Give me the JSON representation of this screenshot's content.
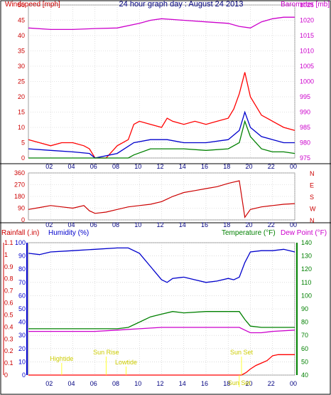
{
  "chart_data": [
    {
      "type": "line",
      "title": "24 hour graph day : August 24 2013",
      "left_label": "Windspeed [mph]",
      "right_label": "Barometer [mb]",
      "x_ticks": [
        "02",
        "04",
        "06",
        "08",
        "10",
        "12",
        "14",
        "16",
        "18",
        "20",
        "22",
        "00"
      ],
      "left_ticks": [
        "0",
        "5",
        "10",
        "15",
        "20",
        "25",
        "30",
        "35",
        "40",
        "45",
        "50"
      ],
      "right_ticks": [
        "975",
        "980",
        "985",
        "990",
        "995",
        "1000",
        "1005",
        "1010",
        "1015",
        "1020",
        "1025"
      ],
      "ylim_left": [
        0,
        50
      ],
      "ylim_right": [
        975,
        1025
      ],
      "series": [
        {
          "color": "#ff0000",
          "axis": "left",
          "x": [
            0,
            1,
            2,
            3,
            4,
            5,
            5.5,
            6,
            7,
            8,
            9,
            9.5,
            10,
            11,
            12,
            12.5,
            13,
            14,
            15,
            16,
            17,
            18,
            18.5,
            19,
            19.5,
            20,
            21,
            22,
            23,
            24
          ],
          "y": [
            6,
            5,
            4,
            5,
            5,
            4,
            3,
            0,
            0,
            4,
            6,
            11,
            12,
            11,
            10,
            13,
            12,
            11,
            12,
            11,
            12,
            13,
            16,
            21,
            28,
            20,
            14,
            12,
            10,
            9
          ]
        },
        {
          "color": "#0000cc",
          "axis": "left",
          "x": [
            0,
            2,
            4,
            5.5,
            6,
            8,
            9.5,
            11,
            12.5,
            14,
            16,
            18,
            19,
            19.5,
            20,
            21,
            22,
            23,
            24
          ],
          "y": [
            3,
            2.5,
            2,
            1.5,
            0,
            1.5,
            5,
            6,
            6,
            5,
            5,
            6,
            9,
            15,
            10,
            7,
            6,
            5,
            5
          ]
        },
        {
          "color": "#008000",
          "axis": "left",
          "x": [
            0,
            6,
            9,
            9.5,
            11,
            12.5,
            14,
            16,
            18,
            19,
            19.5,
            20,
            21,
            22,
            23,
            24
          ],
          "y": [
            0,
            0,
            0,
            1,
            3,
            3,
            3,
            2.5,
            3,
            5,
            12,
            7,
            3,
            2,
            2,
            1.5
          ]
        },
        {
          "color": "#cc00cc",
          "axis": "right",
          "x": [
            0,
            2,
            4,
            6,
            8,
            10,
            11,
            12,
            14,
            16,
            18,
            19,
            20,
            21,
            22,
            23,
            24
          ],
          "y": [
            1017.5,
            1017,
            1017,
            1017.3,
            1017.5,
            1019,
            1020,
            1020.5,
            1020,
            1019.5,
            1019,
            1018,
            1017.5,
            1019.5,
            1020.5,
            1021,
            1021
          ]
        }
      ]
    },
    {
      "type": "line",
      "right_label": "N W S E N",
      "left_ticks": [
        "0",
        "90",
        "180",
        "270",
        "360"
      ],
      "x_ticks": [
        "02",
        "04",
        "06",
        "08",
        "10",
        "12",
        "14",
        "16",
        "18",
        "20",
        "22",
        "00"
      ],
      "ylim": [
        0,
        360
      ],
      "series": [
        {
          "color": "#cc0000",
          "x": [
            0,
            1,
            2,
            3,
            4,
            5,
            5.5,
            6,
            7,
            8,
            9,
            10,
            11,
            12,
            12.5,
            13,
            14,
            15,
            16,
            17,
            18,
            18.5,
            19,
            19.5,
            20,
            21,
            22,
            23,
            24
          ],
          "y": [
            80,
            95,
            110,
            100,
            90,
            110,
            70,
            50,
            60,
            80,
            100,
            110,
            120,
            140,
            160,
            180,
            210,
            225,
            240,
            255,
            280,
            290,
            300,
            20,
            80,
            100,
            110,
            120,
            125
          ]
        }
      ]
    },
    {
      "type": "line",
      "left_label": "Rainfall (.in)",
      "left_label2": "Humidity (%)",
      "right_label": "Temperature (°F)",
      "right_label2": "Dew Point (°F)",
      "rain_ticks": [
        "0",
        "0.1",
        "0.2",
        "0.3",
        "0.4",
        "0.5",
        "0.6",
        "0.7",
        "0.8",
        "0.9",
        "1",
        "1.1"
      ],
      "humidity_ticks": [
        "0",
        "10",
        "20",
        "30",
        "40",
        "50",
        "60",
        "70",
        "80",
        "90",
        "100"
      ],
      "temp_ticks": [
        "40",
        "50",
        "60",
        "70",
        "80",
        "90",
        "100",
        "110",
        "120",
        "130",
        "140"
      ],
      "x_ticks": [
        "02",
        "04",
        "06",
        "08",
        "10",
        "12",
        "14",
        "16",
        "18",
        "20",
        "22",
        "00"
      ],
      "annotations": [
        "Hightide",
        "Sun Rise",
        "Lowtide",
        "Sun Set",
        "Sun Set"
      ],
      "series": [
        {
          "color": "#0000cc",
          "axis": "humidity",
          "x": [
            0,
            1,
            2,
            4,
            6,
            8,
            9,
            10,
            11,
            11.5,
            12,
            12.5,
            13,
            14,
            15,
            16,
            17,
            18,
            18.5,
            19,
            19.5,
            20,
            21,
            22,
            23,
            24
          ],
          "y": [
            92,
            91,
            93,
            94,
            95,
            96,
            96,
            92,
            82,
            77,
            72,
            70,
            73,
            74,
            72,
            70,
            71,
            73,
            72,
            74,
            85,
            93,
            94,
            94,
            95,
            93
          ]
        },
        {
          "color": "#008000",
          "axis": "temp",
          "x": [
            0,
            2,
            4,
            6,
            8,
            9,
            10,
            11,
            12,
            13,
            14,
            16,
            18,
            19,
            19.5,
            20,
            21,
            22,
            24
          ],
          "y": [
            75,
            75,
            75,
            75,
            75,
            76,
            80,
            84,
            86,
            88,
            87,
            88,
            88,
            88,
            82,
            77,
            76,
            76,
            76
          ]
        },
        {
          "color": "#cc00cc",
          "axis": "temp",
          "x": [
            0,
            2,
            4,
            6,
            8,
            10,
            12,
            14,
            16,
            18,
            19,
            19.5,
            20,
            21,
            22,
            24
          ],
          "y": [
            73,
            73,
            73,
            73,
            74,
            75,
            76,
            76,
            76,
            76,
            76,
            74,
            72,
            72,
            73,
            74
          ]
        },
        {
          "color": "#ff0000",
          "axis": "rain",
          "x": [
            0,
            19.2,
            19.6,
            20,
            20.5,
            21,
            21.5,
            22,
            22.5,
            23,
            24
          ],
          "y": [
            0,
            0,
            0.02,
            0.05,
            0.08,
            0.1,
            0.12,
            0.16,
            0.17,
            0.17,
            0.17
          ]
        }
      ]
    }
  ]
}
